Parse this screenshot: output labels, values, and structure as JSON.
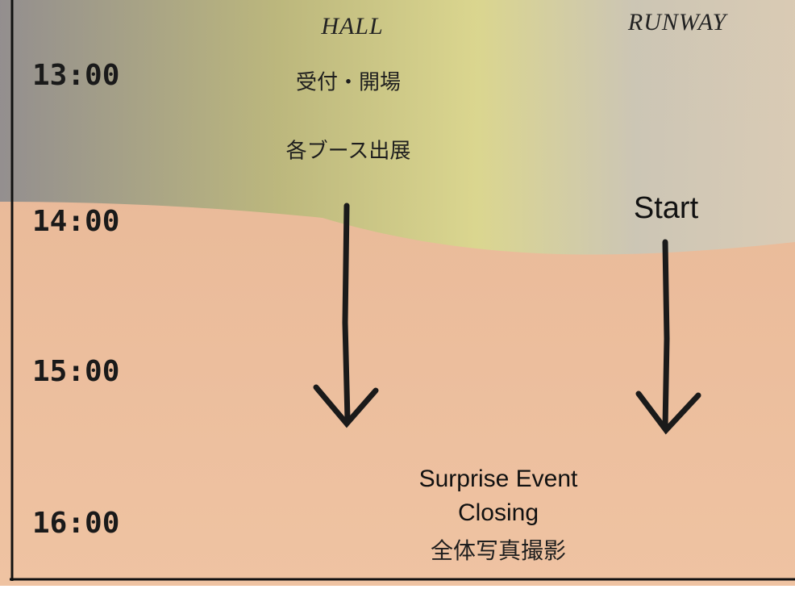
{
  "header": {
    "columns": [
      "HALL",
      "RUNWAY"
    ]
  },
  "times": [
    "13:00",
    "14:00",
    "15:00",
    "16:00"
  ],
  "hall": {
    "items": [
      "受付・開場",
      "各ブース出展"
    ]
  },
  "runway": {
    "start": "Start"
  },
  "finale": {
    "items": [
      "Surprise Event",
      "Closing",
      "全体写真撮影"
    ]
  }
}
